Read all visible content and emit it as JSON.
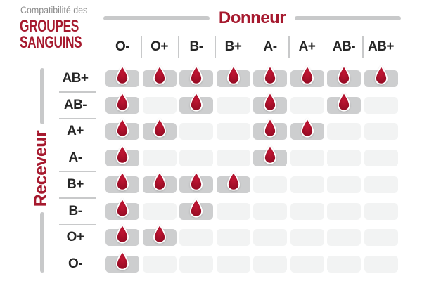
{
  "title": {
    "subtitle": "Compatibilité des",
    "line1": "GROUPES",
    "line2": "SANGUINS"
  },
  "donor": {
    "label": "Donneur"
  },
  "receiver": {
    "label": "Receveur"
  },
  "donor_types": [
    "O-",
    "O+",
    "B-",
    "B+",
    "A-",
    "A+",
    "AB-",
    "AB+"
  ],
  "receiver_types": [
    "AB+",
    "AB-",
    "A+",
    "A-",
    "B+",
    "B-",
    "O+",
    "O-"
  ],
  "compatibility_matrix": [
    [
      1,
      1,
      1,
      1,
      1,
      1,
      1,
      1
    ],
    [
      1,
      0,
      1,
      0,
      1,
      0,
      1,
      0
    ],
    [
      1,
      1,
      0,
      0,
      1,
      1,
      0,
      0
    ],
    [
      1,
      0,
      0,
      0,
      1,
      0,
      0,
      0
    ],
    [
      1,
      1,
      1,
      1,
      0,
      0,
      0,
      0
    ],
    [
      1,
      0,
      1,
      0,
      0,
      0,
      0,
      0
    ],
    [
      1,
      1,
      0,
      0,
      0,
      0,
      0,
      0
    ],
    [
      1,
      0,
      0,
      0,
      0,
      0,
      0,
      0
    ]
  ],
  "icons": {
    "compatible_marker": "blood-drop-icon"
  },
  "colors": {
    "accent_red": "#a6192e",
    "drop_red_light": "#bb1431",
    "drop_red_dark": "#8e0a21",
    "cell_filled": "#cdcecf",
    "cell_empty": "#f2f3f3",
    "line_gray": "#c8c9ca",
    "text_dark": "#262626",
    "subtitle_gray": "#8c8c8c"
  },
  "chart_data": {
    "type": "heatmap",
    "title": "Compatibilité des GROUPES SANGUINS",
    "xlabel": "Donneur",
    "ylabel": "Receveur",
    "x": [
      "O-",
      "O+",
      "B-",
      "B+",
      "A-",
      "A+",
      "AB-",
      "AB+"
    ],
    "y": [
      "AB+",
      "AB-",
      "A+",
      "A-",
      "B+",
      "B-",
      "O+",
      "O-"
    ],
    "values": [
      [
        1,
        1,
        1,
        1,
        1,
        1,
        1,
        1
      ],
      [
        1,
        0,
        1,
        0,
        1,
        0,
        1,
        0
      ],
      [
        1,
        1,
        0,
        0,
        1,
        1,
        0,
        0
      ],
      [
        1,
        0,
        0,
        0,
        1,
        0,
        0,
        0
      ],
      [
        1,
        1,
        1,
        1,
        0,
        0,
        0,
        0
      ],
      [
        1,
        0,
        1,
        0,
        0,
        0,
        0,
        0
      ],
      [
        1,
        1,
        0,
        0,
        0,
        0,
        0,
        0
      ],
      [
        1,
        0,
        0,
        0,
        0,
        0,
        0,
        0
      ]
    ],
    "value_meaning": "1 = compatible (blood drop shown), 0 = incompatible (empty cell)",
    "legend_position": "none",
    "grid": false
  }
}
